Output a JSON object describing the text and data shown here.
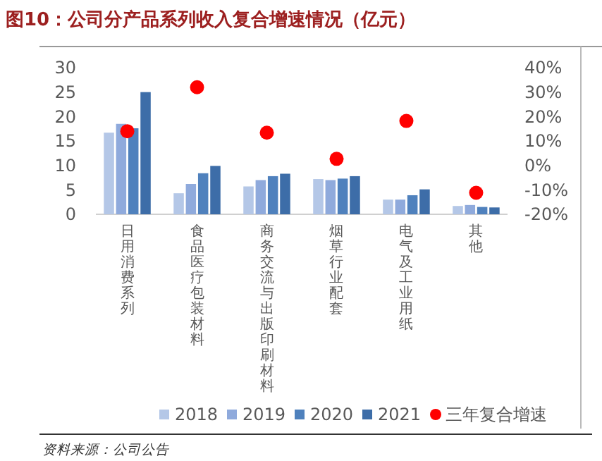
{
  "chart_data": {
    "type": "bar",
    "title": "图10：公司分产品系列收入复合增速情况（亿元）",
    "categories": [
      "日用消费系列",
      "食品医疗包装材料",
      "商务交流与出版印刷材料",
      "烟草行业配套",
      "电气及工业用纸",
      "其他"
    ],
    "series": [
      {
        "name": "2018",
        "color": "#b4c7e7",
        "values": [
          16.7,
          4.3,
          5.7,
          7.2,
          3.0,
          1.7
        ]
      },
      {
        "name": "2019",
        "color": "#8faadc",
        "values": [
          18.5,
          6.2,
          7.0,
          7.0,
          3.0,
          1.9
        ]
      },
      {
        "name": "2020",
        "color": "#4f81bd",
        "values": [
          17.6,
          8.4,
          7.8,
          7.3,
          3.9,
          1.5
        ]
      },
      {
        "name": "2021",
        "color": "#3d6da8",
        "values": [
          25,
          9.9,
          8.3,
          7.8,
          5.1,
          1.4
        ]
      },
      {
        "name": "三年复合增速",
        "type": "scatter",
        "axis": "y2",
        "color": "#ff0000",
        "values": [
          14,
          32,
          13.4,
          2.7,
          18.2,
          -11.2
        ]
      }
    ],
    "ylim": [
      0,
      30
    ],
    "yticks": [
      0,
      5,
      10,
      15,
      20,
      25,
      30
    ],
    "y2lim": [
      -20,
      40
    ],
    "y2ticks": [
      {
        "value": -20,
        "label": "-20%"
      },
      {
        "value": -10,
        "label": "-10%"
      },
      {
        "value": 0,
        "label": "0%"
      },
      {
        "value": 10,
        "label": "10%"
      },
      {
        "value": 20,
        "label": "20%"
      },
      {
        "value": 30,
        "label": "30%"
      },
      {
        "value": 40,
        "label": "40%"
      }
    ],
    "marker": "circle",
    "grid": false,
    "legend": "bottom",
    "annotations": [
      "资料来源：公司公告"
    ]
  }
}
